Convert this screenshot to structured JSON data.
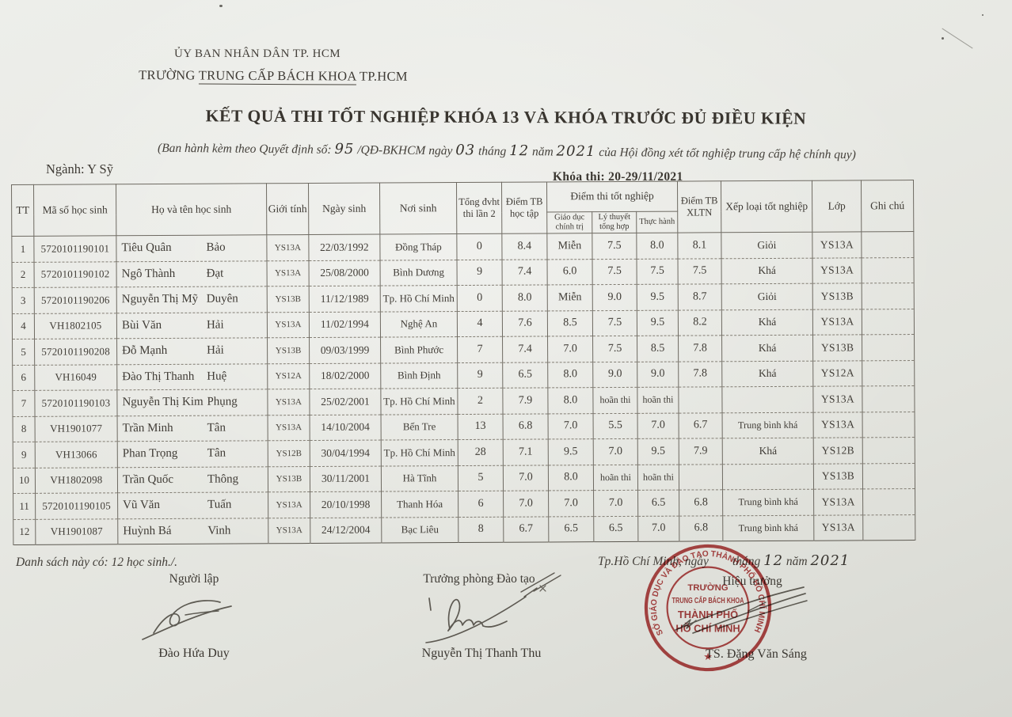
{
  "page": {
    "org_line1": "ỦY BAN NHÂN DÂN TP. HCM",
    "org_line2_prefix": "TRƯỜNG ",
    "org_line2_school": "TRUNG CẤP BÁCH KHOA",
    "org_line2_suffix": " TP.HCM",
    "title": "KẾT QUẢ THI TỐT NGHIỆP KHÓA 13 VÀ KHÓA TRƯỚC ĐỦ ĐIỀU KIỆN",
    "decision": {
      "pre": "(Ban hành kèm theo Quyết định số: ",
      "number": "95",
      "mid1": " /QĐ-BKHCM ngày ",
      "day": "03",
      "mid2": " tháng ",
      "month": "12",
      "mid3": " năm ",
      "year": "2021",
      "post": "  của Hội đồng xét tốt nghiệp trung cấp hệ chính quy)"
    },
    "major_label": "Ngành: Y Sỹ",
    "exam_session": "Khóa thi: 20-29/11/2021"
  },
  "table": {
    "headers": {
      "tt": "TT",
      "student_id": "Mã số học sinh",
      "full_name": "Họ và tên học sinh",
      "gender": "Giới tính",
      "dob": "Ngày sinh",
      "birthplace": "Nơi sinh",
      "total_credits": "Tổng đvht thi lần 2",
      "gpa": "Điểm TB học tập",
      "exam_group": "Điểm thi tốt nghiệp",
      "politics": "Giáo dục chính trị",
      "theory": "Lý thuyết tổng hợp",
      "practice": "Thực hành",
      "avg_xltn": "Điểm TB XLTN",
      "classification": "Xếp loại tốt nghiệp",
      "class": "Lớp",
      "notes": "Ghi chú"
    },
    "rows": [
      {
        "tt": "1",
        "student_id": "5720101190101",
        "last_names": "Tiêu Quân",
        "given_name": "Bảo",
        "gender": "YS13A",
        "dob": "22/03/1992",
        "birthplace": "Đồng Tháp",
        "total_credits": "0",
        "gpa": "8.4",
        "politics": "Miễn",
        "theory": "7.5",
        "practice": "8.0",
        "avg_xltn": "8.1",
        "classification": "Giỏi",
        "class_name": "YS13A",
        "notes": ""
      },
      {
        "tt": "2",
        "student_id": "5720101190102",
        "last_names": "Ngô Thành",
        "given_name": "Đạt",
        "gender": "YS13A",
        "dob": "25/08/2000",
        "birthplace": "Bình Dương",
        "total_credits": "9",
        "gpa": "7.4",
        "politics": "6.0",
        "theory": "7.5",
        "practice": "7.5",
        "avg_xltn": "7.5",
        "classification": "Khá",
        "class_name": "YS13A",
        "notes": ""
      },
      {
        "tt": "3",
        "student_id": "5720101190206",
        "last_names": "Nguyễn Thị Mỹ",
        "given_name": "Duyên",
        "gender": "YS13B",
        "dob": "11/12/1989",
        "birthplace": "Tp. Hồ Chí Minh",
        "total_credits": "0",
        "gpa": "8.0",
        "politics": "Miễn",
        "theory": "9.0",
        "practice": "9.5",
        "avg_xltn": "8.7",
        "classification": "Giỏi",
        "class_name": "YS13B",
        "notes": ""
      },
      {
        "tt": "4",
        "student_id": "VH1802105",
        "last_names": "Bùi Văn",
        "given_name": "Hải",
        "gender": "YS13A",
        "dob": "11/02/1994",
        "birthplace": "Nghệ An",
        "total_credits": "4",
        "gpa": "7.6",
        "politics": "8.5",
        "theory": "7.5",
        "practice": "9.5",
        "avg_xltn": "8.2",
        "classification": "Khá",
        "class_name": "YS13A",
        "notes": ""
      },
      {
        "tt": "5",
        "student_id": "5720101190208",
        "last_names": "Đỗ Mạnh",
        "given_name": "Hải",
        "gender": "YS13B",
        "dob": "09/03/1999",
        "birthplace": "Bình Phước",
        "total_credits": "7",
        "gpa": "7.4",
        "politics": "7.0",
        "theory": "7.5",
        "practice": "8.5",
        "avg_xltn": "7.8",
        "classification": "Khá",
        "class_name": "YS13B",
        "notes": ""
      },
      {
        "tt": "6",
        "student_id": "VH16049",
        "last_names": "Đào Thị Thanh",
        "given_name": "Huệ",
        "gender": "YS12A",
        "dob": "18/02/2000",
        "birthplace": "Bình Định",
        "total_credits": "9",
        "gpa": "6.5",
        "politics": "8.0",
        "theory": "9.0",
        "practice": "9.0",
        "avg_xltn": "7.8",
        "classification": "Khá",
        "class_name": "YS12A",
        "notes": ""
      },
      {
        "tt": "7",
        "student_id": "5720101190103",
        "last_names": "Nguyễn Thị Kim",
        "given_name": "Phụng",
        "gender": "YS13A",
        "dob": "25/02/2001",
        "birthplace": "Tp. Hồ Chí Minh",
        "total_credits": "2",
        "gpa": "7.9",
        "politics": "8.0",
        "theory": "hoãn thi",
        "practice": "hoãn thi",
        "avg_xltn": "",
        "classification": "",
        "class_name": "YS13A",
        "notes": ""
      },
      {
        "tt": "8",
        "student_id": "VH1901077",
        "last_names": "Trần Minh",
        "given_name": "Tân",
        "gender": "YS13A",
        "dob": "14/10/2004",
        "birthplace": "Bến Tre",
        "total_credits": "13",
        "gpa": "6.8",
        "politics": "7.0",
        "theory": "5.5",
        "practice": "7.0",
        "avg_xltn": "6.7",
        "classification": "Trung bình khá",
        "class_name": "YS13A",
        "notes": ""
      },
      {
        "tt": "9",
        "student_id": "VH13066",
        "last_names": "Phan Trọng",
        "given_name": "Tân",
        "gender": "YS12B",
        "dob": "30/04/1994",
        "birthplace": "Tp. Hồ Chí Minh",
        "total_credits": "28",
        "gpa": "7.1",
        "politics": "9.5",
        "theory": "7.0",
        "practice": "9.5",
        "avg_xltn": "7.9",
        "classification": "Khá",
        "class_name": "YS12B",
        "notes": ""
      },
      {
        "tt": "10",
        "student_id": "VH1802098",
        "last_names": "Trần Quốc",
        "given_name": "Thông",
        "gender": "YS13B",
        "dob": "30/11/2001",
        "birthplace": "Hà Tĩnh",
        "total_credits": "5",
        "gpa": "7.0",
        "politics": "8.0",
        "theory": "hoãn thi",
        "practice": "hoãn thi",
        "avg_xltn": "",
        "classification": "",
        "class_name": "YS13B",
        "notes": ""
      },
      {
        "tt": "11",
        "student_id": "5720101190105",
        "last_names": "Vũ Văn",
        "given_name": "Tuấn",
        "gender": "YS13A",
        "dob": "20/10/1998",
        "birthplace": "Thanh Hóa",
        "total_credits": "6",
        "gpa": "7.0",
        "politics": "7.0",
        "theory": "7.0",
        "practice": "6.5",
        "avg_xltn": "6.8",
        "classification": "Trung bình khá",
        "class_name": "YS13A",
        "notes": ""
      },
      {
        "tt": "12",
        "student_id": "VH1901087",
        "last_names": "Huỳnh Bá",
        "given_name": "Vinh",
        "gender": "YS13A",
        "dob": "24/12/2004",
        "birthplace": "Bạc Liêu",
        "total_credits": "8",
        "gpa": "6.7",
        "politics": "6.5",
        "theory": "6.5",
        "practice": "7.0",
        "avg_xltn": "6.8",
        "classification": "Trung bình khá",
        "class_name": "YS13A",
        "notes": ""
      }
    ]
  },
  "footer": {
    "count_line": "Danh sách này có: 12 học sinh./.",
    "preparer": {
      "title": "Người lập",
      "name": "Đào Hứa Duy"
    },
    "training_head": {
      "title": "Trưởng phòng Đào tạo",
      "name": "Nguyễn Thị Thanh Thu"
    },
    "principal": {
      "title": "Hiệu trưởng",
      "name": "TS. Đặng Văn Sáng"
    },
    "date_line": {
      "pre": "Tp.Hồ Chí Minh, ngày",
      "thang": "tháng",
      "month": "12",
      "nam": "năm",
      "year": "2021"
    },
    "stamp": {
      "ring_text": "SỞ GIÁO DỤC VÀ ĐÀO TẠO THÀNH PHỐ HỒ CHÍ MINH",
      "center_lines": [
        "TRƯỜNG",
        "TRUNG CẤP BÁCH KHOA",
        "THÀNH PHỐ",
        "HỒ CHÍ MINH"
      ],
      "star": "★",
      "color": "#b23a3a"
    }
  }
}
